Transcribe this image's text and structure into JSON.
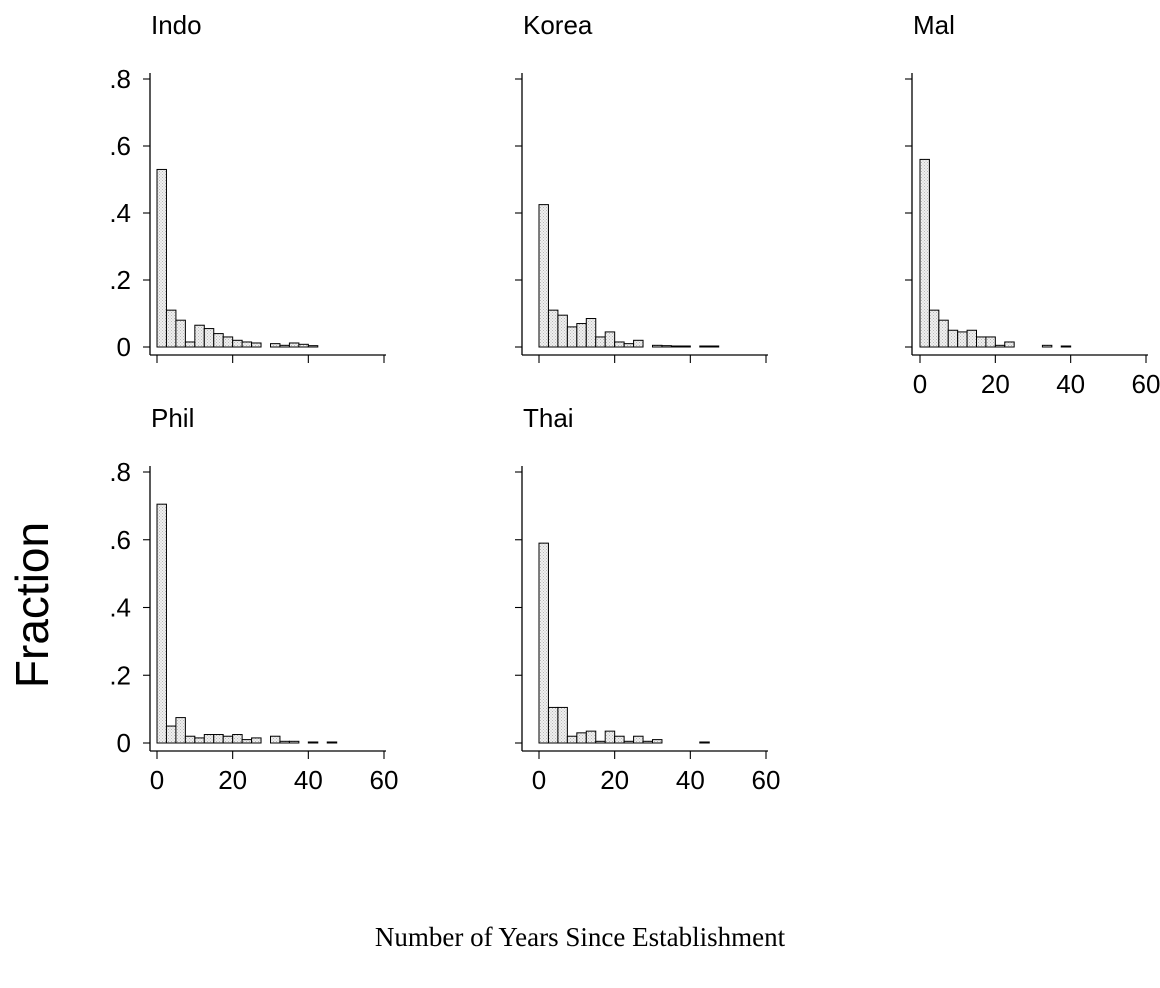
{
  "figure": {
    "y_axis_label": "Fraction",
    "x_axis_label": "Number of Years Since Establishment"
  },
  "chart_data": [
    {
      "type": "bar",
      "title": "Indo",
      "bin_width": 2.5,
      "x": [
        1.25,
        3.75,
        6.25,
        8.75,
        11.25,
        13.75,
        16.25,
        18.75,
        21.25,
        23.75,
        26.25,
        31.25,
        33.75,
        36.25,
        38.75,
        41.25
      ],
      "values": [
        0.53,
        0.11,
        0.08,
        0.015,
        0.065,
        0.055,
        0.04,
        0.03,
        0.02,
        0.015,
        0.012,
        0.01,
        0.005,
        0.012,
        0.008,
        0.004
      ],
      "xlim": [
        0,
        60
      ],
      "ylim": [
        0,
        0.8
      ],
      "xticks": [
        0,
        20,
        40,
        60
      ],
      "xtick_labels": [],
      "yticks": [
        0,
        0.2,
        0.4,
        0.6,
        0.8
      ],
      "ytick_labels": [
        "0",
        ".2",
        ".4",
        ".6",
        ".8"
      ]
    },
    {
      "type": "bar",
      "title": "Korea",
      "bin_width": 2.5,
      "x": [
        1.25,
        3.75,
        6.25,
        8.75,
        11.25,
        13.75,
        16.25,
        18.75,
        21.25,
        23.75,
        26.25,
        31.25,
        33.75,
        36.25,
        38.75,
        43.75,
        46.25
      ],
      "values": [
        0.425,
        0.11,
        0.095,
        0.06,
        0.07,
        0.085,
        0.03,
        0.045,
        0.015,
        0.01,
        0.02,
        0.005,
        0.004,
        0.003,
        0.003,
        0.003,
        0.003
      ],
      "xlim": [
        0,
        60
      ],
      "ylim": [
        0,
        0.8
      ],
      "xticks": [
        0,
        20,
        40,
        60
      ],
      "xtick_labels": [],
      "yticks": [
        0,
        0.2,
        0.4,
        0.6,
        0.8
      ],
      "ytick_labels": []
    },
    {
      "type": "bar",
      "title": "Mal",
      "bin_width": 2.5,
      "x": [
        1.25,
        3.75,
        6.25,
        8.75,
        11.25,
        13.75,
        16.25,
        18.75,
        21.25,
        23.75,
        33.75,
        38.75
      ],
      "values": [
        0.56,
        0.11,
        0.08,
        0.05,
        0.045,
        0.05,
        0.03,
        0.03,
        0.005,
        0.015,
        0.005,
        0.003
      ],
      "xlim": [
        0,
        60
      ],
      "ylim": [
        0,
        0.8
      ],
      "xticks": [
        0,
        20,
        40,
        60
      ],
      "xtick_labels": [
        "0",
        "20",
        "40",
        "60"
      ],
      "yticks": [
        0,
        0.2,
        0.4,
        0.6,
        0.8
      ],
      "ytick_labels": []
    },
    {
      "type": "bar",
      "title": "Phil",
      "bin_width": 2.5,
      "x": [
        1.25,
        3.75,
        6.25,
        8.75,
        11.25,
        13.75,
        16.25,
        18.75,
        21.25,
        23.75,
        26.25,
        31.25,
        33.75,
        36.25,
        41.25,
        46.25
      ],
      "values": [
        0.705,
        0.05,
        0.075,
        0.02,
        0.015,
        0.025,
        0.025,
        0.02,
        0.025,
        0.01,
        0.015,
        0.02,
        0.005,
        0.005,
        0.003,
        0.003
      ],
      "xlim": [
        0,
        60
      ],
      "ylim": [
        0,
        0.8
      ],
      "xticks": [
        0,
        20,
        40,
        60
      ],
      "xtick_labels": [
        "0",
        "20",
        "40",
        "60"
      ],
      "yticks": [
        0,
        0.2,
        0.4,
        0.6,
        0.8
      ],
      "ytick_labels": [
        "0",
        ".2",
        ".4",
        ".6",
        ".8"
      ]
    },
    {
      "type": "bar",
      "title": "Thai",
      "bin_width": 2.5,
      "x": [
        1.25,
        3.75,
        6.25,
        8.75,
        11.25,
        13.75,
        16.25,
        18.75,
        21.25,
        23.75,
        26.25,
        28.75,
        31.25,
        43.75
      ],
      "values": [
        0.59,
        0.105,
        0.105,
        0.02,
        0.03,
        0.035,
        0.005,
        0.035,
        0.02,
        0.005,
        0.02,
        0.005,
        0.01,
        0.003
      ],
      "xlim": [
        0,
        60
      ],
      "ylim": [
        0,
        0.8
      ],
      "xticks": [
        0,
        20,
        40,
        60
      ],
      "xtick_labels": [
        "0",
        "20",
        "40",
        "60"
      ],
      "yticks": [
        0,
        0.2,
        0.4,
        0.6,
        0.8
      ],
      "ytick_labels": []
    }
  ]
}
